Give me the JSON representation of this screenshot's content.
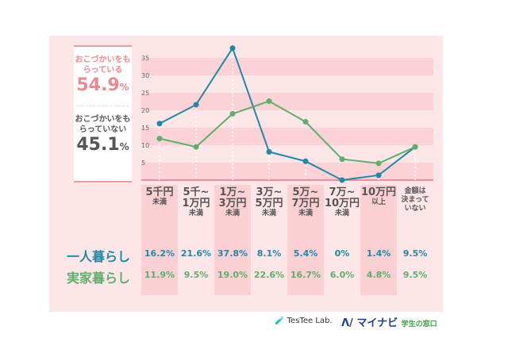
{
  "summary": {
    "receiving_label": "おこづかいをもらっている",
    "receiving_value": "54.9",
    "not_receiving_label": "おこづかいをもらっていない",
    "not_receiving_value": "45.1",
    "unit": "%"
  },
  "chart_data": {
    "type": "line",
    "categories": [
      {
        "l1": "5千円",
        "l2": "未満",
        "l3": ""
      },
      {
        "l1": "5千~",
        "l2": "1万円",
        "l3": "未満"
      },
      {
        "l1": "1万~",
        "l2": "3万円",
        "l3": "未満"
      },
      {
        "l1": "3万~",
        "l2": "5万円",
        "l3": "未満"
      },
      {
        "l1": "5万~",
        "l2": "7万円",
        "l3": "未満"
      },
      {
        "l1": "7万~",
        "l2": "10万円",
        "l3": "未満"
      },
      {
        "l1": "10万円",
        "l2": "以上",
        "l3": ""
      },
      {
        "l1": "金額は",
        "l2": "決まって",
        "l3": "いない"
      }
    ],
    "yticks": [
      5,
      10,
      15,
      20,
      25,
      30,
      35
    ],
    "ylim": [
      0,
      38
    ],
    "series": [
      {
        "name": "一人暮らし",
        "color": "#2387a6",
        "values": [
          16.2,
          21.6,
          37.8,
          8.1,
          5.4,
          0,
          1.4,
          9.5
        ],
        "labels": [
          "16.2%",
          "21.6%",
          "37.8%",
          "8.1%",
          "5.4%",
          "0%",
          "1.4%",
          "9.5%"
        ]
      },
      {
        "name": "実家暮らし",
        "color": "#5fae6b",
        "values": [
          11.9,
          9.5,
          19.0,
          22.6,
          16.7,
          6.0,
          4.8,
          9.5
        ],
        "labels": [
          "11.9%",
          "9.5%",
          "19.0%",
          "22.6%",
          "16.7%",
          "6.0%",
          "4.8%",
          "9.5%"
        ]
      }
    ]
  },
  "footer": {
    "logo1": "TesTee Lab.",
    "logo2": "マイナビ",
    "logo2_sub": "学生の窓口"
  }
}
